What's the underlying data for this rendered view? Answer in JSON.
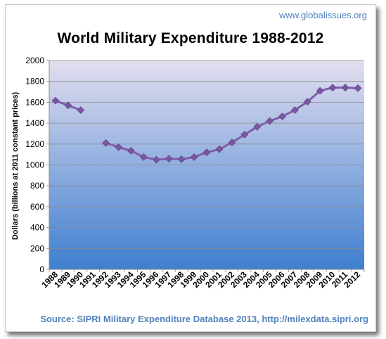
{
  "header": {
    "watermark": "www.globalissues.org"
  },
  "footer": {
    "source": "Source: SIPRI Military Expenditure Database 2013, http://milexdata.sipri.org"
  },
  "chart_data": {
    "type": "line",
    "title": "World Military Expenditure 1988-2012",
    "xlabel": "",
    "ylabel": "Dollars (billions at 2011 constant prices)",
    "ylim": [
      0,
      2000
    ],
    "yticks": [
      0,
      200,
      400,
      600,
      800,
      1000,
      1200,
      1400,
      1600,
      1800,
      2000
    ],
    "grid": true,
    "legend": "none",
    "categories": [
      "1988",
      "1989",
      "1990",
      "1991",
      "1992",
      "1993",
      "1994",
      "1995",
      "1996",
      "1997",
      "1998",
      "1999",
      "2000",
      "2001",
      "2002",
      "2003",
      "2004",
      "2005",
      "2006",
      "2007",
      "2008",
      "2009",
      "2010",
      "2011",
      "2012"
    ],
    "series": [
      {
        "values": [
          1615,
          1570,
          1525,
          null,
          1210,
          1170,
          1135,
          1075,
          1050,
          1060,
          1055,
          1075,
          1120,
          1150,
          1215,
          1290,
          1365,
          1420,
          1465,
          1525,
          1605,
          1710,
          1740,
          1740,
          1735
        ],
        "color": "#7f5fa8"
      }
    ],
    "colors": {
      "plot_top": "#e2deef",
      "plot_bottom": "#3f7fd0",
      "line": "#7f5fa8",
      "marker": "#7a57a3"
    }
  }
}
